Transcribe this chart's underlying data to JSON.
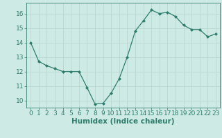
{
  "x": [
    0,
    1,
    2,
    3,
    4,
    5,
    6,
    7,
    8,
    9,
    10,
    11,
    12,
    13,
    14,
    15,
    16,
    17,
    18,
    19,
    20,
    21,
    22,
    23
  ],
  "y": [
    14.0,
    12.7,
    12.4,
    12.2,
    12.0,
    12.0,
    12.0,
    10.9,
    9.75,
    9.8,
    10.5,
    11.5,
    13.0,
    14.8,
    15.5,
    16.25,
    16.0,
    16.1,
    15.8,
    15.2,
    14.9,
    14.9,
    14.4,
    14.6
  ],
  "xlabel": "Humidex (Indice chaleur)",
  "ylim": [
    9.5,
    16.75
  ],
  "xlim": [
    -0.5,
    23.5
  ],
  "yticks": [
    10,
    11,
    12,
    13,
    14,
    15,
    16
  ],
  "xticks": [
    0,
    1,
    2,
    3,
    4,
    5,
    6,
    7,
    8,
    9,
    10,
    11,
    12,
    13,
    14,
    15,
    16,
    17,
    18,
    19,
    20,
    21,
    22,
    23
  ],
  "line_color": "#2e7d6e",
  "marker": "D",
  "marker_size": 2.0,
  "bg_color": "#ceeae4",
  "grid_color": "#b8d8d0",
  "tick_color": "#2e7d6e",
  "label_color": "#2e7d6e",
  "xlabel_fontsize": 7.5,
  "tick_fontsize": 6.5
}
